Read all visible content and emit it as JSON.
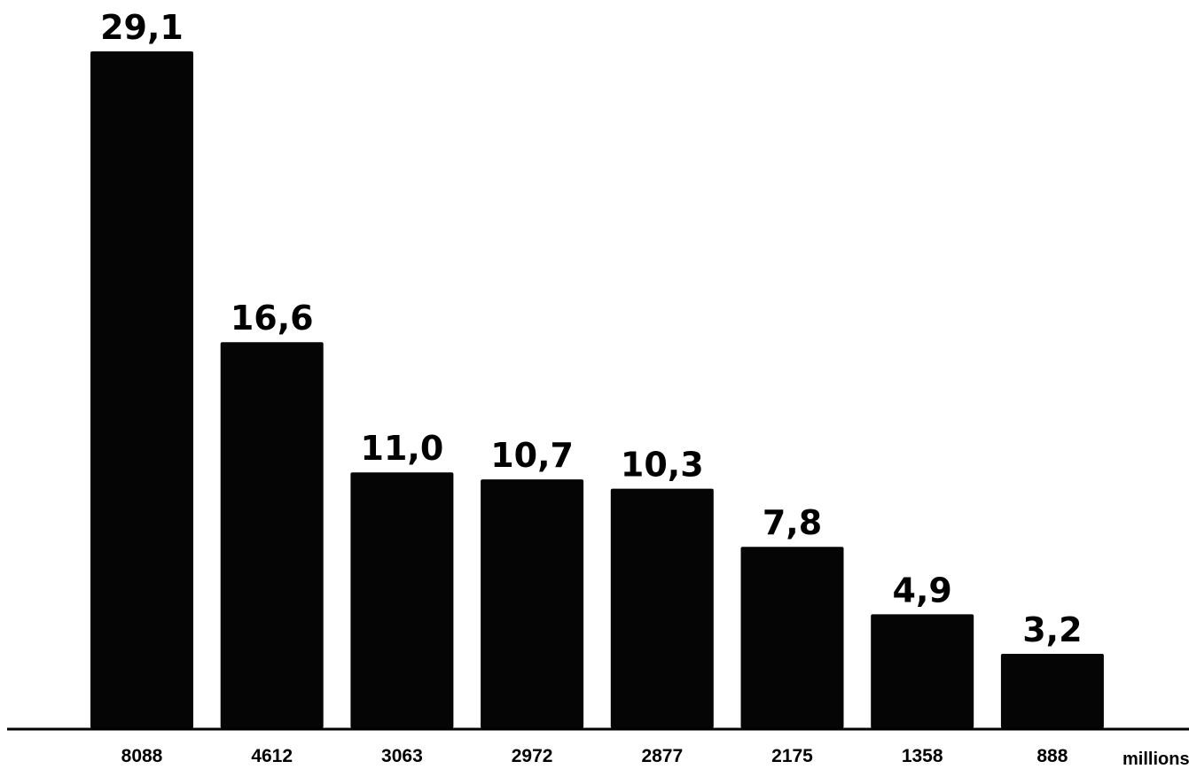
{
  "chart_data": {
    "type": "bar",
    "categories": [
      "8088",
      "4612",
      "3063",
      "2972",
      "2877",
      "2175",
      "1358",
      "888"
    ],
    "values": [
      29.1,
      16.6,
      11.0,
      10.7,
      10.3,
      7.8,
      4.9,
      3.2
    ],
    "value_labels": [
      "29,1",
      "16,6",
      "11,0",
      "10,7",
      "10,3",
      "7,8",
      "4,9",
      "3,2"
    ],
    "category_unit": "millions",
    "title": "",
    "xlabel": "",
    "ylabel": "",
    "ylim": [
      0,
      29.1
    ],
    "grid": false,
    "bar_color": "#050505",
    "legend": "none"
  }
}
